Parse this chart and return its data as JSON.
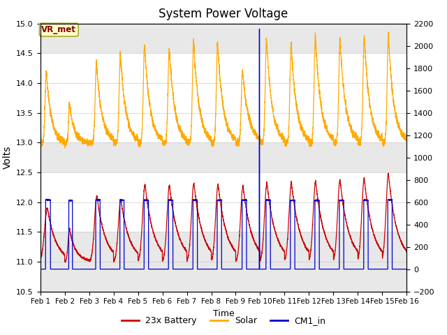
{
  "title": "System Power Voltage",
  "xlabel": "Time",
  "ylabel_left": "Volts",
  "ylim_left": [
    10.5,
    15.0
  ],
  "ylim_right": [
    -200,
    2200
  ],
  "xtick_labels": [
    "Feb 1",
    "Feb 2",
    "Feb 3",
    "Feb 4",
    "Feb 5",
    "Feb 6",
    "Feb 7",
    "Feb 8",
    "Feb 9",
    "Feb 10",
    "Feb 11",
    "Feb 12",
    "Feb 13",
    "Feb 14",
    "Feb 15",
    "Feb 16"
  ],
  "yticks_left": [
    10.5,
    11.0,
    11.5,
    12.0,
    12.5,
    13.0,
    13.5,
    14.0,
    14.5,
    15.0
  ],
  "yticks_right": [
    -200,
    0,
    200,
    400,
    600,
    800,
    1000,
    1200,
    1400,
    1600,
    1800,
    2000,
    2200
  ],
  "color_battery": "#cc0000",
  "color_solar": "#ffaa00",
  "color_cm1": "#0000cc",
  "vr_met_label": "VR_met",
  "vr_met_text_color": "#880000",
  "legend_labels": [
    "23x Battery",
    "Solar",
    "CM1_in"
  ],
  "shade_color": "#e8e8e8",
  "spike_day": 9.97
}
